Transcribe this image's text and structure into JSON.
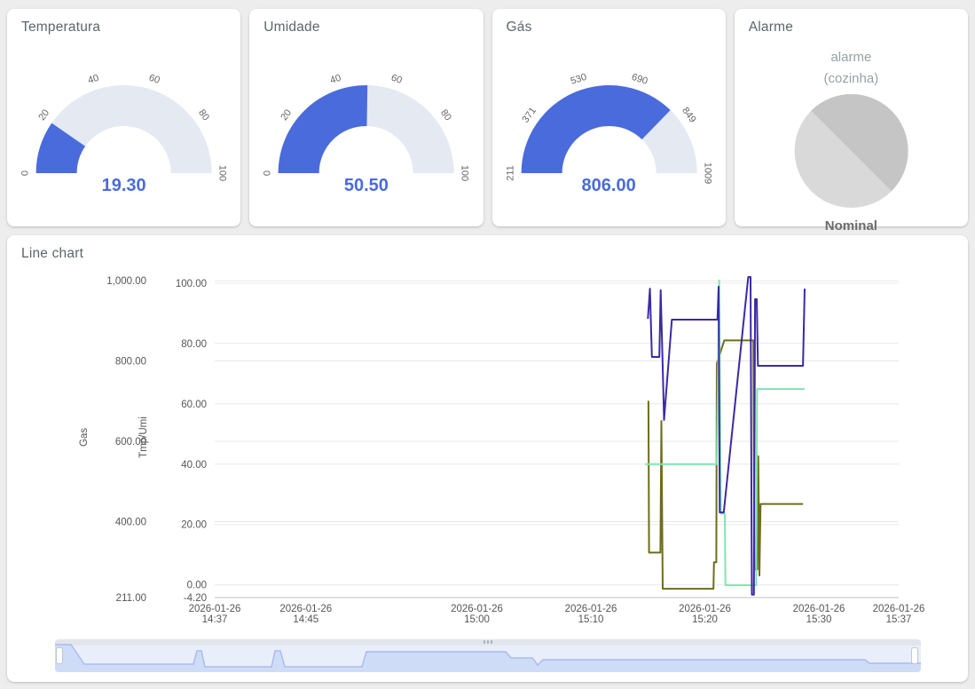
{
  "colors": {
    "page_bg": "#ededed",
    "card_bg": "#ffffff",
    "accent_blue": "#4a6bdb",
    "gauge_track": "#e4e9f2",
    "tick_text": "#666666",
    "axis_text": "#555555",
    "grid": "#e9e9e9",
    "axis_line": "#c2c2c2",
    "pie_light": "#d9d9d9",
    "pie_dark": "#c5c5c5",
    "series_gas": "#3b2aa5",
    "series_tmp": "#6d6d1d",
    "series_umi": "#7fe5b0",
    "nav_fill": "#cfdcf7",
    "nav_stroke": "#aabced"
  },
  "gauges": [
    {
      "title": "Temperatura",
      "value": "19.30",
      "value_num": 19.3,
      "min": 0,
      "max": 100,
      "ticks": [
        "0",
        "20",
        "40",
        "60",
        "80",
        "100"
      ]
    },
    {
      "title": "Umidade",
      "value": "50.50",
      "value_num": 50.5,
      "min": 0,
      "max": 100,
      "ticks": [
        "0",
        "20",
        "40",
        "60",
        "80",
        "100"
      ]
    },
    {
      "title": "Gás",
      "value": "806.00",
      "value_num": 806,
      "min": 211,
      "max": 1009,
      "ticks": [
        "211",
        "371",
        "530",
        "690",
        "849",
        "1009"
      ]
    }
  ],
  "alarm": {
    "title": "Alarme",
    "label": "alarme",
    "sublabel": "(cozinha)",
    "status": "Nominal"
  },
  "chart_data": {
    "type": "line",
    "title": "Line chart",
    "grid": true,
    "legend": "none",
    "x_axis": {
      "unit": "minutes-after-start",
      "range_minutes": [
        0,
        60
      ],
      "ticks": [
        {
          "t": 0,
          "date": "2026-01-26",
          "time": "14:37"
        },
        {
          "t": 8,
          "date": "2026-01-26",
          "time": "14:45"
        },
        {
          "t": 23,
          "date": "2026-01-26",
          "time": "15:00"
        },
        {
          "t": 33,
          "date": "2026-01-26",
          "time": "15:10"
        },
        {
          "t": 43,
          "date": "2026-01-26",
          "time": "15:20"
        },
        {
          "t": 53,
          "date": "2026-01-26",
          "time": "15:30"
        },
        {
          "t": 60,
          "date": "2026-01-26",
          "time": "15:37"
        }
      ]
    },
    "y_axes": {
      "gas": {
        "label": "Gas",
        "min": 211,
        "max": 1009,
        "ticks": [
          {
            "v": 1000,
            "label": "1,000.00"
          },
          {
            "v": 800,
            "label": "800.00"
          },
          {
            "v": 600,
            "label": "600.00"
          },
          {
            "v": 400,
            "label": "400.00"
          },
          {
            "v": 211,
            "label": "211.00"
          }
        ]
      },
      "tmpumi": {
        "label": "Tmp/Umi",
        "min": -4.2,
        "max": 102,
        "ticks": [
          {
            "v": 100,
            "label": "100.00"
          },
          {
            "v": 80,
            "label": "80.00"
          },
          {
            "v": 60,
            "label": "60.00"
          },
          {
            "v": 40,
            "label": "40.00"
          },
          {
            "v": 20,
            "label": "20.00"
          },
          {
            "v": 0,
            "label": "0.00"
          },
          {
            "v": -4.2,
            "label": "-4.20"
          }
        ]
      }
    },
    "series": [
      {
        "name": "Tmp",
        "axis": "tmpumi",
        "color_key": "series_tmp",
        "points": [
          [
            38.05,
            61
          ],
          [
            38.1,
            10.7
          ],
          [
            39.1,
            10.7
          ],
          [
            39.18,
            54.3
          ],
          [
            39.3,
            -1.3
          ],
          [
            43.75,
            -1.3
          ],
          [
            43.8,
            7.5
          ],
          [
            44.0,
            7.5
          ],
          [
            44.05,
            73.4
          ],
          [
            44.7,
            81
          ],
          [
            47.25,
            81
          ],
          [
            47.35,
            5.1
          ],
          [
            47.6,
            5.1
          ],
          [
            47.68,
            42.6
          ],
          [
            47.78,
            3.1
          ],
          [
            47.88,
            26.8
          ],
          [
            51.6,
            26.8
          ]
        ]
      },
      {
        "name": "Umi",
        "axis": "tmpumi",
        "color_key": "series_umi",
        "points": [
          [
            37.75,
            40
          ],
          [
            44.05,
            40
          ],
          [
            44.25,
            100.9
          ],
          [
            44.4,
            23.6
          ],
          [
            44.75,
            23.6
          ],
          [
            44.8,
            -0.1
          ],
          [
            47.5,
            -0.1
          ],
          [
            47.58,
            64.9
          ],
          [
            51.75,
            64.9
          ]
        ]
      },
      {
        "name": "Gas",
        "axis": "gas",
        "color_key": "series_gas",
        "points": [
          [
            38.0,
            905
          ],
          [
            38.18,
            980
          ],
          [
            38.35,
            810
          ],
          [
            39.0,
            810
          ],
          [
            39.12,
            976
          ],
          [
            39.28,
            810
          ],
          [
            39.42,
            653
          ],
          [
            40.1,
            903
          ],
          [
            44.1,
            903
          ],
          [
            44.2,
            985
          ],
          [
            44.3,
            423
          ],
          [
            44.65,
            423
          ],
          [
            46.8,
            1009
          ],
          [
            47.0,
            1009
          ],
          [
            47.12,
            218
          ],
          [
            47.3,
            218
          ],
          [
            47.4,
            954
          ],
          [
            47.55,
            954
          ],
          [
            47.65,
            788
          ],
          [
            51.6,
            788
          ],
          [
            51.75,
            980
          ]
        ]
      }
    ]
  },
  "slider": {
    "selected_range": [
      0,
      1
    ],
    "curve": [
      [
        0,
        6
      ],
      [
        18,
        6
      ],
      [
        33,
        28
      ],
      [
        156,
        28
      ],
      [
        160,
        13
      ],
      [
        165,
        13
      ],
      [
        169,
        31
      ],
      [
        244,
        31
      ],
      [
        248,
        13
      ],
      [
        254,
        13
      ],
      [
        259,
        31
      ],
      [
        346,
        31
      ],
      [
        351,
        14
      ],
      [
        508,
        14
      ],
      [
        514,
        21
      ],
      [
        538,
        21
      ],
      [
        544,
        29
      ],
      [
        550,
        23
      ],
      [
        913,
        23
      ],
      [
        918,
        27
      ],
      [
        976,
        27
      ]
    ]
  }
}
